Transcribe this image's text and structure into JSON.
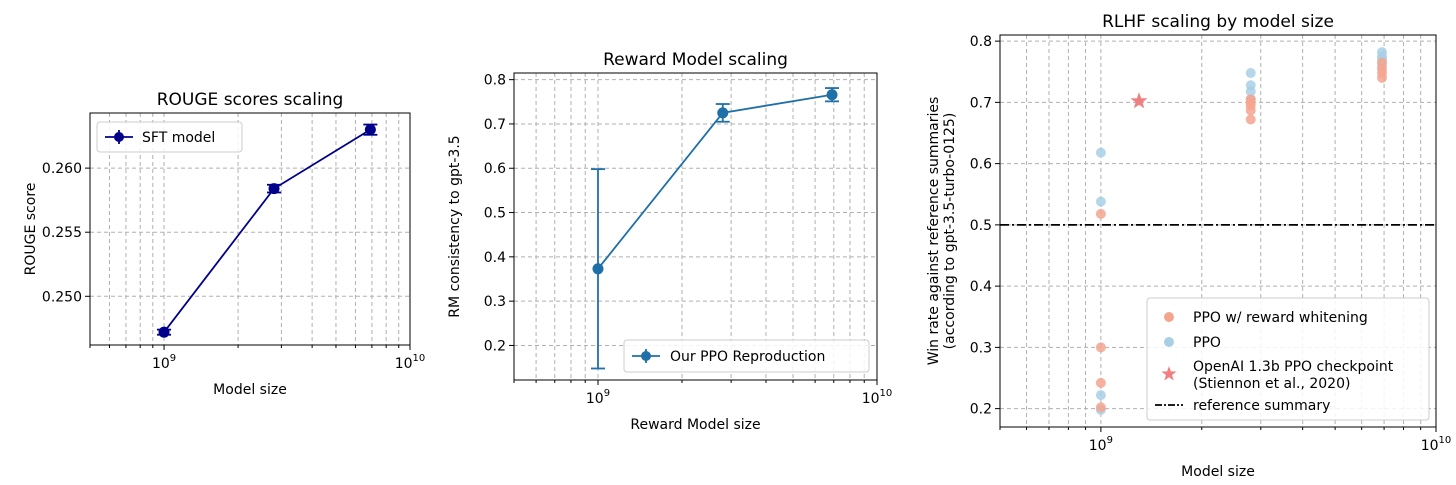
{
  "chart_data": [
    {
      "type": "line",
      "title": "ROUGE scores scaling",
      "xlabel": "Model size",
      "ylabel": "ROUGE score",
      "xscale": "log",
      "xlim": [
        500000000,
        10000000000
      ],
      "ylim": [
        0.2462,
        0.2643
      ],
      "grid": true,
      "legend_position": "top-left",
      "x_tick_labels": [
        {
          "base": "10",
          "exp": "9",
          "value": 1000000000
        },
        {
          "base": "10",
          "exp": "10",
          "value": 10000000000
        }
      ],
      "y_ticks": [
        0.25,
        0.255,
        0.26
      ],
      "y_tick_labels": [
        "0.250",
        "0.255",
        "0.260"
      ],
      "y_decimals": 3,
      "colors": {
        "series": "#00008b"
      },
      "series": [
        {
          "name": "SFT model",
          "x": [
            1000000000,
            2800000000,
            6900000000
          ],
          "y": [
            0.2472,
            0.2584,
            0.263
          ],
          "yerr": [
            0.0002,
            0.0003,
            0.0004
          ]
        }
      ]
    },
    {
      "type": "line",
      "title": "Reward Model scaling",
      "xlabel": "Reward Model size",
      "ylabel": "RM consistency to gpt-3.5",
      "xscale": "log",
      "xlim": [
        500000000,
        10000000000
      ],
      "ylim": [
        0.122,
        0.815
      ],
      "grid": true,
      "legend_position": "bottom-right",
      "x_tick_labels": [
        {
          "base": "10",
          "exp": "9",
          "value": 1000000000
        },
        {
          "base": "10",
          "exp": "10",
          "value": 10000000000
        }
      ],
      "y_ticks": [
        0.2,
        0.3,
        0.4,
        0.5,
        0.6,
        0.7,
        0.8
      ],
      "y_tick_labels": [
        "0.2",
        "0.3",
        "0.4",
        "0.5",
        "0.6",
        "0.7",
        "0.8"
      ],
      "y_decimals": 1,
      "colors": {
        "series": "#1f6fa8"
      },
      "series": [
        {
          "name": "Our PPO Reproduction",
          "x": [
            1000000000,
            2800000000,
            6900000000
          ],
          "y": [
            0.373,
            0.725,
            0.766
          ],
          "yerr": [
            0.225,
            0.02,
            0.015
          ]
        }
      ]
    },
    {
      "type": "scatter",
      "title": "RLHF scaling by model size",
      "xlabel": "Model size",
      "ylabel": [
        "Win rate against reference summaries",
        "(according to gpt-3.5-turbo-0125)"
      ],
      "xscale": "log",
      "xlim": [
        500000000,
        10000000000
      ],
      "ylim": [
        0.17,
        0.81
      ],
      "grid": true,
      "legend_position": "bottom-right",
      "x_tick_labels": [
        {
          "base": "10",
          "exp": "9",
          "value": 1000000000
        },
        {
          "base": "10",
          "exp": "10",
          "value": 10000000000
        }
      ],
      "y_ticks": [
        0.2,
        0.3,
        0.4,
        0.5,
        0.6,
        0.7,
        0.8
      ],
      "y_tick_labels": [
        "0.2",
        "0.3",
        "0.4",
        "0.5",
        "0.6",
        "0.7",
        "0.8"
      ],
      "y_decimals": 1,
      "colors": {
        "whitening": "#f4a58f",
        "ppo": "#a9cfe5",
        "openai": "#f08080",
        "reference": "#000000"
      },
      "series": [
        {
          "name": "PPO w/ reward whitening",
          "marker": "circle",
          "x": [
            1000000000,
            1000000000,
            1000000000,
            1000000000,
            2800000000,
            2800000000,
            2800000000,
            2800000000,
            2800000000,
            6900000000,
            6900000000,
            6900000000,
            6900000000
          ],
          "y": [
            0.518,
            0.3,
            0.242,
            0.202,
            0.705,
            0.687,
            0.672,
            0.695,
            0.7,
            0.74,
            0.755,
            0.748,
            0.765
          ]
        },
        {
          "name": "PPO",
          "marker": "circle",
          "x": [
            1000000000,
            1000000000,
            1000000000,
            1000000000,
            2800000000,
            2800000000,
            2800000000,
            2800000000,
            6900000000,
            6900000000,
            6900000000,
            6900000000
          ],
          "y": [
            0.618,
            0.538,
            0.222,
            0.198,
            0.748,
            0.728,
            0.718,
            0.705,
            0.782,
            0.775,
            0.77,
            0.76
          ]
        },
        {
          "name": [
            "OpenAI 1.3b PPO checkpoint",
            "(Stiennon et al., 2020)"
          ],
          "marker": "star",
          "x": [
            1300000000
          ],
          "y": [
            0.702
          ]
        },
        {
          "name": "reference summary",
          "marker": "dashdot-line",
          "y_const": 0.5
        }
      ]
    }
  ]
}
